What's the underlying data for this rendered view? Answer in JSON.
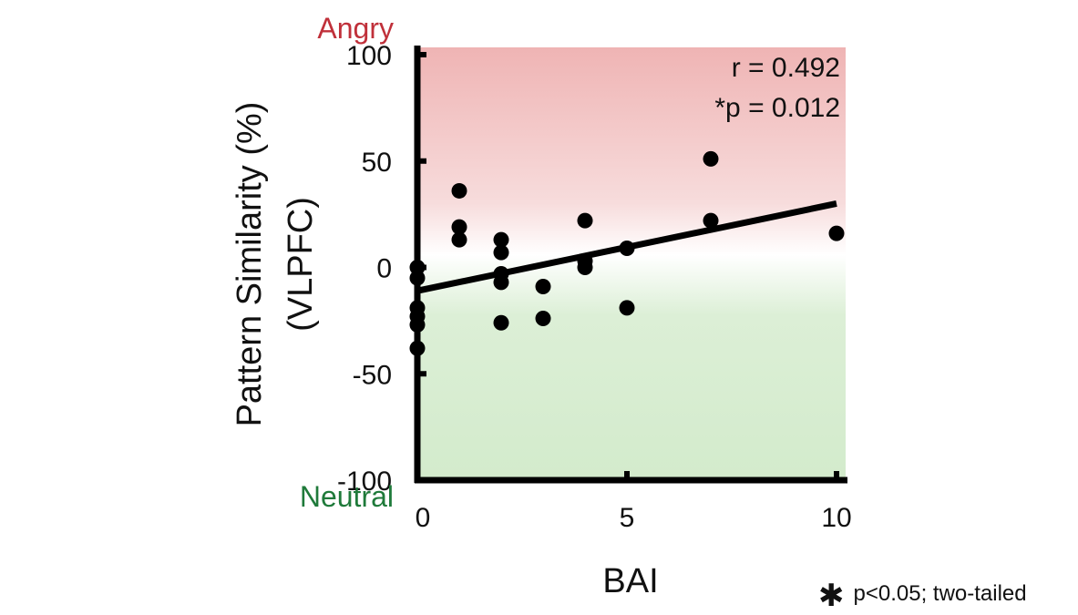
{
  "chart_data": {
    "type": "scatter",
    "xlabel": "BAI",
    "ylabel": "Pattern Similarity (%)",
    "ylabel_sub": "(VLPFC)",
    "xlim": [
      0,
      10
    ],
    "ylim": [
      -100,
      100
    ],
    "x_ticks": [
      0,
      5,
      10
    ],
    "y_ticks": [
      100,
      50,
      0,
      -50,
      -100
    ],
    "top_category": "Angry",
    "bottom_category": "Neutral",
    "top_color": "#c0303a",
    "bottom_color": "#1f7a3a",
    "background_gradient": {
      "top": "#efb4b4",
      "middle": "#ffffff",
      "bottom": "#d3ebcc"
    },
    "annotations": {
      "r": "r = 0.492",
      "p": "*p = 0.012"
    },
    "points": [
      {
        "x": 0,
        "y": 0
      },
      {
        "x": 0,
        "y": -5
      },
      {
        "x": 0,
        "y": -19
      },
      {
        "x": 0,
        "y": -23
      },
      {
        "x": 0,
        "y": -27
      },
      {
        "x": 0,
        "y": -38
      },
      {
        "x": 1,
        "y": 36
      },
      {
        "x": 1,
        "y": 19
      },
      {
        "x": 1,
        "y": 13
      },
      {
        "x": 2,
        "y": 13
      },
      {
        "x": 2,
        "y": 7
      },
      {
        "x": 2,
        "y": -3
      },
      {
        "x": 2,
        "y": -7
      },
      {
        "x": 2,
        "y": -26
      },
      {
        "x": 3,
        "y": -9
      },
      {
        "x": 3,
        "y": -24
      },
      {
        "x": 4,
        "y": 22
      },
      {
        "x": 4,
        "y": 3
      },
      {
        "x": 4,
        "y": 0
      },
      {
        "x": 5,
        "y": 9
      },
      {
        "x": 5,
        "y": -19
      },
      {
        "x": 7,
        "y": 51
      },
      {
        "x": 7,
        "y": 22
      },
      {
        "x": 10,
        "y": 16
      }
    ],
    "regression": {
      "x": [
        0,
        10
      ],
      "y": [
        -11,
        30
      ]
    }
  },
  "footnote": {
    "symbol": "✱",
    "text": "p<0.05; two-tailed"
  }
}
